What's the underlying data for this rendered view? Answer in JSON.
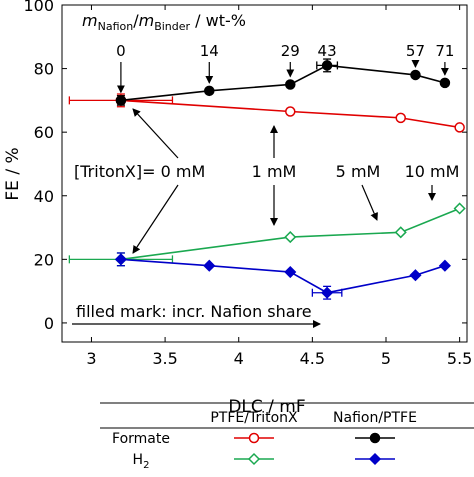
{
  "chart_data": {
    "type": "scatter",
    "xlabel": "DLC / mF",
    "ylabel": "FE / %",
    "xlim": [
      2.8,
      5.55
    ],
    "ylim": [
      -6,
      100
    ],
    "xticks": [
      3,
      3.5,
      4,
      4.5,
      5,
      5.5
    ],
    "xtick_labels": [
      "3",
      "3.5",
      "4",
      "4.5",
      "5",
      "5.5"
    ],
    "yticks": [
      0,
      20,
      40,
      60,
      80,
      100
    ],
    "ytick_labels": [
      "0",
      "20",
      "40",
      "60",
      "80",
      "100"
    ],
    "grid": false,
    "series": [
      {
        "name": "Formate PTFE/TritonX",
        "color": "#e00000",
        "marker": "circle-open",
        "x": [
          3.2,
          4.35,
          5.1,
          5.5
        ],
        "y": [
          70,
          66.5,
          64.5,
          61.5
        ]
      },
      {
        "name": "Formate Nafion/PTFE",
        "color": "#000000",
        "marker": "circle-filled",
        "x": [
          3.2,
          3.8,
          4.35,
          4.6,
          5.2,
          5.4
        ],
        "y": [
          70,
          73,
          75,
          81,
          78,
          75.5
        ]
      },
      {
        "name": "H2 PTFE/TritonX",
        "color": "#1aa850",
        "marker": "diamond-open",
        "x": [
          3.2,
          4.35,
          5.1,
          5.5
        ],
        "y": [
          20,
          27,
          28.5,
          36
        ]
      },
      {
        "name": "H2 Nafion/PTFE",
        "color": "#0000c8",
        "marker": "diamond-filled",
        "x": [
          3.2,
          3.8,
          4.35,
          4.6,
          5.2,
          5.4
        ],
        "y": [
          20,
          18,
          16,
          9.5,
          15,
          18
        ]
      }
    ],
    "error_bars": [
      {
        "x": 3.2,
        "y": 70,
        "xerr": [
          0.35,
          0.35
        ],
        "yerr": 2,
        "color": "#e00000"
      },
      {
        "x": 3.2,
        "y": 70,
        "yerr": 1.5,
        "color": "#000000"
      },
      {
        "x": 4.6,
        "y": 81,
        "xerr": [
          0.07,
          0.07
        ],
        "yerr": 2,
        "color": "#000000"
      },
      {
        "x": 3.2,
        "y": 20,
        "xerr": [
          0.35,
          0.35
        ],
        "yerr": 2,
        "color": "#1aa850"
      },
      {
        "x": 3.2,
        "y": 20,
        "yerr": 2,
        "color": "#0000c8"
      },
      {
        "x": 4.6,
        "y": 9.5,
        "xerr": [
          0.1,
          0.1
        ],
        "yerr": 2,
        "color": "#0000c8"
      }
    ],
    "nafion_labels": [
      {
        "text": "0",
        "x": 3.2
      },
      {
        "text": "14",
        "x": 3.8
      },
      {
        "text": "29",
        "x": 4.35
      },
      {
        "text": "43",
        "x": 4.6
      },
      {
        "text": "57",
        "x": 5.2
      },
      {
        "text": "71",
        "x": 5.4
      }
    ],
    "legend": {
      "columns": [
        "PTFE/TritonX",
        "Nafion/PTFE"
      ],
      "rows": [
        "Formate",
        "H"
      ]
    }
  },
  "annotations": {
    "header_m1": "m",
    "header_sub1": "Nafion",
    "header_slash": "/",
    "header_m2": "m",
    "header_sub2": "Binder",
    "header_unit": " / wt-%",
    "tritonx_0": "[TritonX]= 0 mM",
    "tritonx_1": "1 mM",
    "tritonx_5": "5 mM",
    "tritonx_10": "10 mM",
    "filled_mark": "filled mark: incr. Nafion share",
    "h2_subscript": "2"
  }
}
